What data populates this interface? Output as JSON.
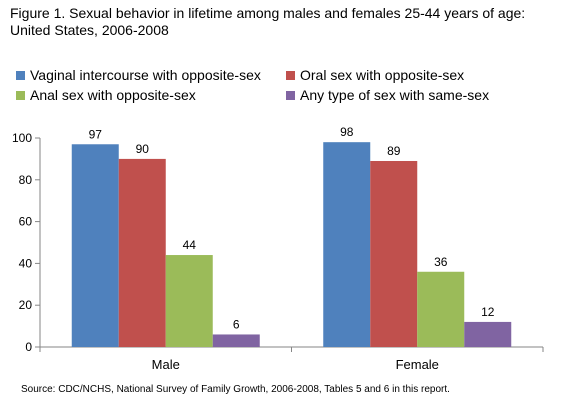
{
  "title": {
    "line1": "Figure 1.  Sexual behavior in lifetime among males and females 25-44 years of age:",
    "line2": "United States, 2006-2008"
  },
  "source": "Source:  CDC/NCHS, National Survey of Family Growth, 2006-2008, Tables 5 and 6 in this report.",
  "chart_data": {
    "type": "bar",
    "categories": [
      "Male",
      "Female"
    ],
    "series": [
      {
        "name": "Vaginal intercourse with opposite-sex",
        "values": [
          97,
          98
        ],
        "color": "#4f81bd"
      },
      {
        "name": "Oral sex with opposite-sex",
        "values": [
          90,
          89
        ],
        "color": "#c0504d"
      },
      {
        "name": "Anal sex with opposite-sex",
        "values": [
          44,
          36
        ],
        "color": "#9bbb59"
      },
      {
        "name": "Any type of sex with same-sex",
        "values": [
          6,
          12
        ],
        "color": "#8064a2"
      }
    ],
    "ylim": [
      0,
      100
    ],
    "yticks": [
      0,
      20,
      40,
      60,
      80,
      100
    ],
    "grid": false,
    "legend_position": "top",
    "data_labels": true
  }
}
